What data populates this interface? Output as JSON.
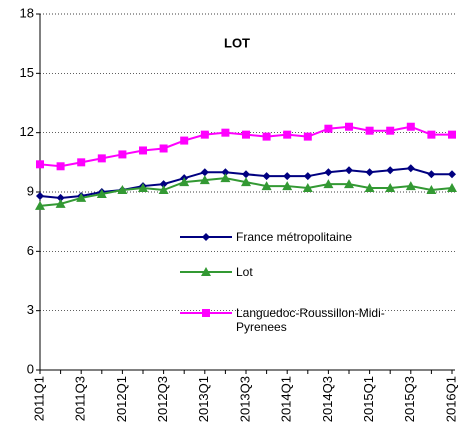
{
  "chart_data": {
    "type": "line",
    "title": "LOT",
    "categories": [
      "2011Q1",
      null,
      "2011Q3",
      null,
      "2012Q1",
      null,
      "2012Q3",
      null,
      "2013Q1",
      null,
      "2013Q3",
      null,
      "2014Q1",
      null,
      "2014Q3",
      null,
      "2015Q1",
      null,
      "2015Q3",
      null,
      "2016Q1"
    ],
    "series": [
      {
        "name": "France métropolitaine",
        "color": "#000080",
        "marker": "diamond",
        "values": [
          8.8,
          8.7,
          8.8,
          9.0,
          9.1,
          9.3,
          9.4,
          9.7,
          10.0,
          10.0,
          9.9,
          9.8,
          9.8,
          9.8,
          10.0,
          10.1,
          10.0,
          10.1,
          10.2,
          9.9,
          9.9
        ]
      },
      {
        "name": "Lot",
        "color": "#339933",
        "marker": "triangle",
        "values": [
          8.3,
          8.4,
          8.7,
          8.9,
          9.1,
          9.2,
          9.1,
          9.5,
          9.6,
          9.7,
          9.5,
          9.3,
          9.3,
          9.2,
          9.4,
          9.4,
          9.2,
          9.2,
          9.3,
          9.1,
          9.2
        ]
      },
      {
        "name": "Languedoc-Roussillon-Midi-Pyrenees",
        "color": "#ff00ff",
        "marker": "square",
        "values": [
          10.4,
          10.3,
          10.5,
          10.7,
          10.9,
          11.1,
          11.2,
          11.6,
          11.9,
          12.0,
          11.9,
          11.8,
          11.9,
          11.8,
          12.2,
          12.3,
          12.1,
          12.1,
          12.3,
          11.9,
          11.9
        ]
      }
    ],
    "ylim": [
      0,
      18
    ],
    "yticks": [
      0,
      3,
      6,
      9,
      12,
      15,
      18
    ],
    "grid": true
  }
}
